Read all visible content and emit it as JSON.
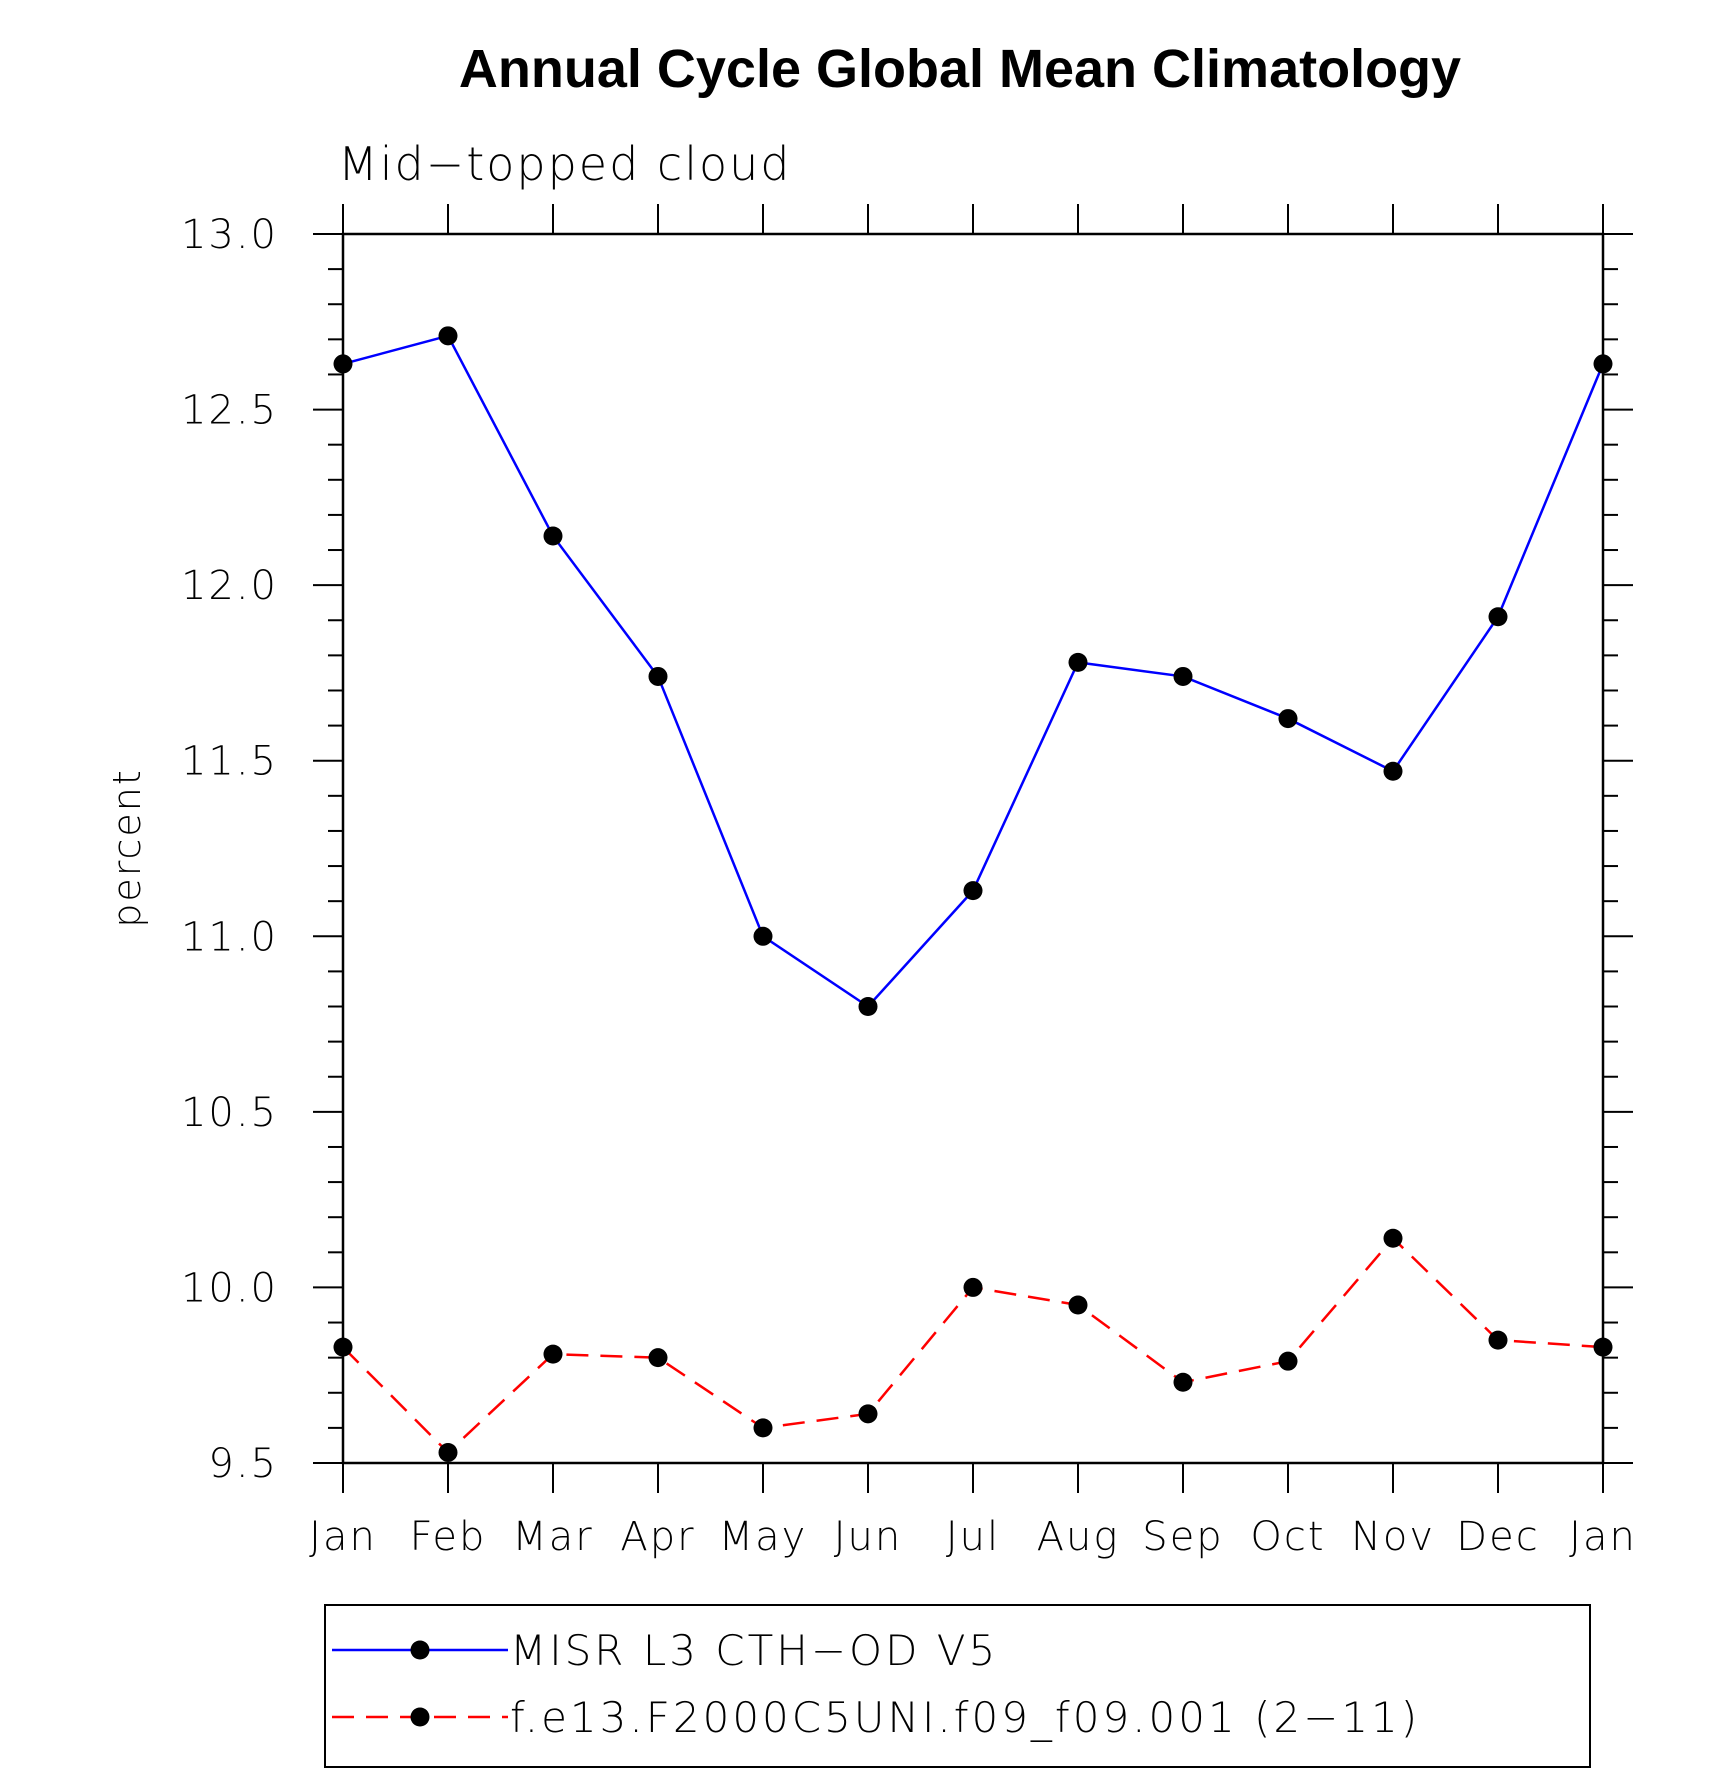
{
  "chart_data": {
    "type": "line",
    "title": "Annual Cycle Global Mean Climatology",
    "subtitle": "Mid−topped cloud",
    "xlabel": "",
    "ylabel": "percent",
    "categories": [
      "Jan",
      "Feb",
      "Mar",
      "Apr",
      "May",
      "Jun",
      "Jul",
      "Aug",
      "Sep",
      "Oct",
      "Nov",
      "Dec",
      "Jan"
    ],
    "ylim": [
      9.5,
      13.0
    ],
    "yticks": [
      "9.5",
      "10.0",
      "10.5",
      "11.0",
      "11.5",
      "12.0",
      "12.5",
      "13.0"
    ],
    "grid": false,
    "legend_position": "bottom",
    "series": [
      {
        "name": "MISR L3 CTH−OD V5",
        "color": "#0000ff",
        "dash": "solid",
        "marker": "filled-circle",
        "values": [
          12.63,
          12.71,
          12.14,
          11.74,
          11.0,
          10.8,
          11.13,
          11.78,
          11.74,
          11.62,
          11.47,
          11.91,
          12.63
        ]
      },
      {
        "name": "f.e13.F2000C5UNI.f09_f09.001 (2−11)",
        "color": "#ff0000",
        "dash": "dashed",
        "marker": "filled-circle",
        "values": [
          9.83,
          9.53,
          9.81,
          9.8,
          9.6,
          9.64,
          10.0,
          9.95,
          9.73,
          9.79,
          10.14,
          9.85,
          9.83
        ]
      }
    ]
  }
}
